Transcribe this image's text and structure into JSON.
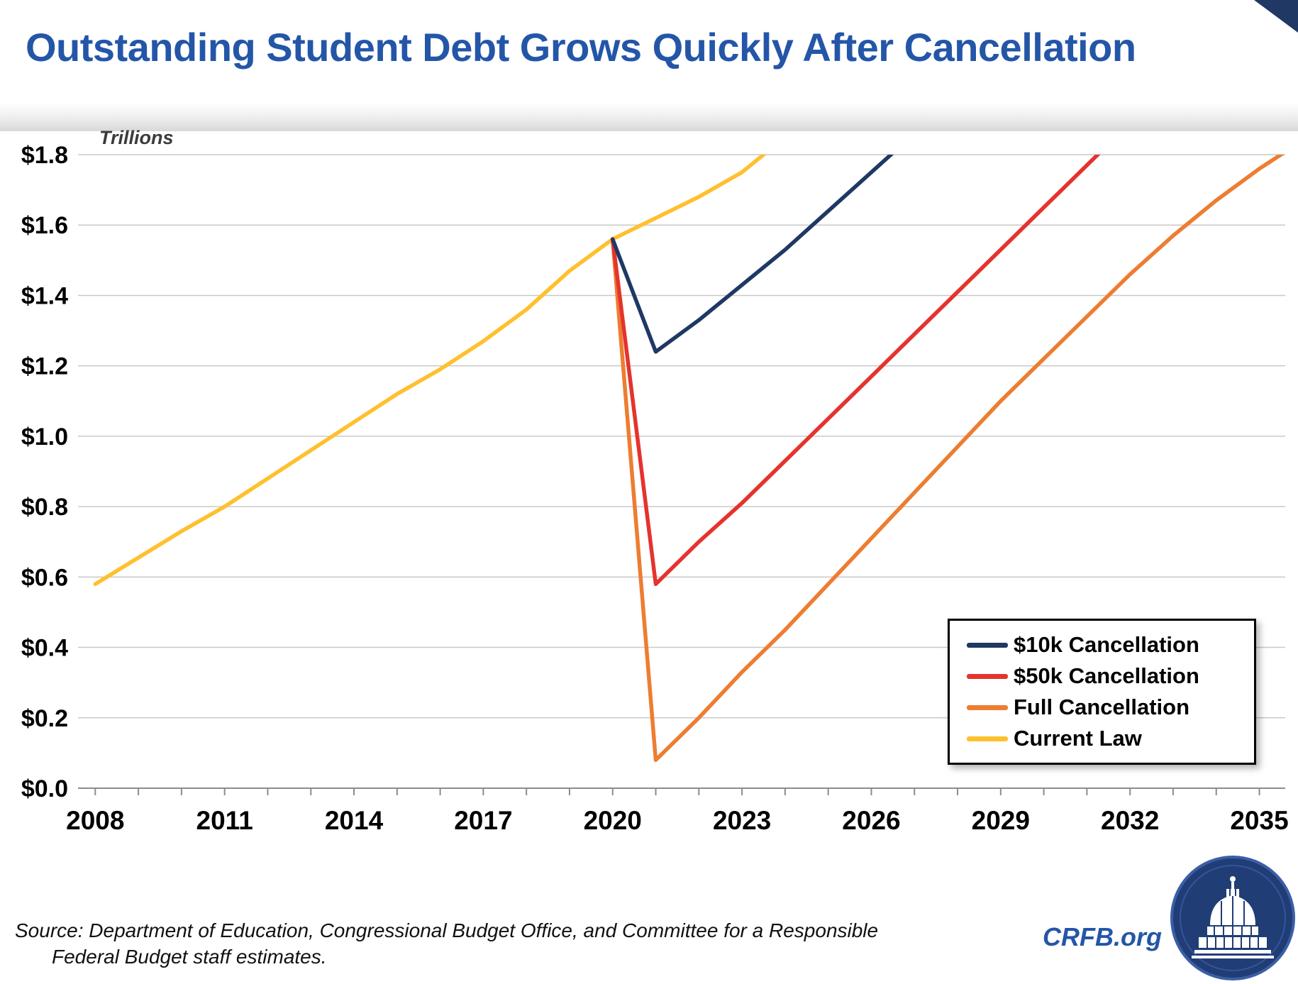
{
  "page": {
    "title": "Outstanding Student Debt Grows Quickly After Cancellation",
    "unit_label": "Trillions",
    "source": {
      "line1": "Source: Department of Education, Congressional Budget Office, and Committee for a Responsible",
      "line2": "Federal Budget staff estimates."
    },
    "branding": {
      "site_label": "CRFB.org",
      "logo_icon": "capitol-dome-icon"
    }
  },
  "colors": {
    "title_blue": "#2456A8",
    "navy": "#1F3864",
    "red": "#E5332D",
    "orange": "#ED7D31",
    "gold": "#FFC02E",
    "gridline": "#C9C9C9",
    "axis": "#8C8C8C",
    "corner_accent": "#1F3864",
    "logo_navy": "#203E75"
  },
  "chart_data": {
    "type": "line",
    "title": "Outstanding Student Debt Grows Quickly After Cancellation",
    "xlabel": "",
    "ylabel": "Trillions",
    "ylim": [
      0,
      1.8
    ],
    "xlim": [
      2007.6,
      2035.6
    ],
    "grid": "horizontal gridlines every 0.2",
    "legend_position": "lower right",
    "yticks": [
      {
        "value": 0.0,
        "label": "$0.0"
      },
      {
        "value": 0.2,
        "label": "$0.2"
      },
      {
        "value": 0.4,
        "label": "$0.4"
      },
      {
        "value": 0.6,
        "label": "$0.6"
      },
      {
        "value": 0.8,
        "label": "$0.8"
      },
      {
        "value": 1.0,
        "label": "$1.0"
      },
      {
        "value": 1.2,
        "label": "$1.2"
      },
      {
        "value": 1.4,
        "label": "$1.4"
      },
      {
        "value": 1.6,
        "label": "$1.6"
      },
      {
        "value": 1.8,
        "label": "$1.8"
      }
    ],
    "xticks": [
      2008,
      2011,
      2014,
      2017,
      2020,
      2023,
      2026,
      2029,
      2032,
      2035
    ],
    "minor_xtick_interval_years": 1,
    "units": "trillions of dollars",
    "series": [
      {
        "name": "$10k Cancellation",
        "color": "#1F3864",
        "points": [
          [
            2020,
            1.56
          ],
          [
            2021,
            1.24
          ],
          [
            2022,
            1.33
          ],
          [
            2023,
            1.43
          ],
          [
            2024,
            1.53
          ],
          [
            2025,
            1.64
          ],
          [
            2026,
            1.75
          ],
          [
            2027,
            1.86
          ]
        ]
      },
      {
        "name": "$50k Cancellation",
        "color": "#E5332D",
        "points": [
          [
            2020,
            1.56
          ],
          [
            2021,
            0.58
          ],
          [
            2022,
            0.7
          ],
          [
            2023,
            0.81
          ],
          [
            2024,
            0.93
          ],
          [
            2025,
            1.05
          ],
          [
            2026,
            1.17
          ],
          [
            2027,
            1.29
          ],
          [
            2028,
            1.41
          ],
          [
            2029,
            1.53
          ],
          [
            2030,
            1.65
          ],
          [
            2031,
            1.77
          ],
          [
            2032,
            1.89
          ]
        ]
      },
      {
        "name": "Full Cancellation",
        "color": "#ED7D31",
        "points": [
          [
            2020,
            1.56
          ],
          [
            2021,
            0.08
          ],
          [
            2022,
            0.2
          ],
          [
            2023,
            0.33
          ],
          [
            2024,
            0.45
          ],
          [
            2025,
            0.58
          ],
          [
            2026,
            0.71
          ],
          [
            2027,
            0.84
          ],
          [
            2028,
            0.97
          ],
          [
            2029,
            1.1
          ],
          [
            2030,
            1.22
          ],
          [
            2031,
            1.34
          ],
          [
            2032,
            1.46
          ],
          [
            2033,
            1.57
          ],
          [
            2034,
            1.67
          ],
          [
            2035,
            1.76
          ],
          [
            2036,
            1.84
          ]
        ]
      },
      {
        "name": "Current Law",
        "color": "#FFC02E",
        "points": [
          [
            2008,
            0.58
          ],
          [
            2009,
            0.655
          ],
          [
            2010,
            0.73
          ],
          [
            2011,
            0.8
          ],
          [
            2012,
            0.88
          ],
          [
            2013,
            0.96
          ],
          [
            2014,
            1.04
          ],
          [
            2015,
            1.12
          ],
          [
            2016,
            1.19
          ],
          [
            2017,
            1.27
          ],
          [
            2018,
            1.36
          ],
          [
            2019,
            1.47
          ],
          [
            2020,
            1.56
          ],
          [
            2021,
            1.62
          ],
          [
            2022,
            1.68
          ],
          [
            2023,
            1.75
          ],
          [
            2024,
            1.85
          ]
        ]
      }
    ]
  }
}
